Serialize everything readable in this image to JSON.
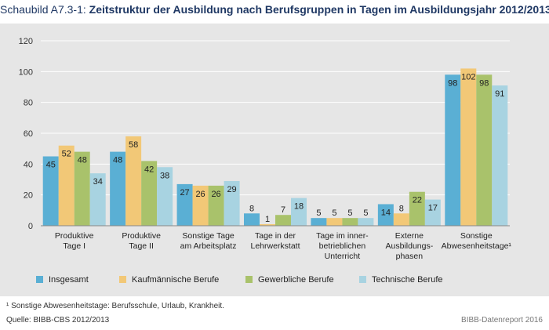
{
  "header": {
    "label": "Schaubild A7.3-1:",
    "title": "Zeitstruktur der Ausbildung nach Berufsgruppen in Tagen im Ausbildungsjahr 2012/2013"
  },
  "chart_data": {
    "type": "bar",
    "categories": [
      [
        "Produktive",
        "Tage I"
      ],
      [
        "Produktive",
        "Tage II"
      ],
      [
        "Sonstige Tage",
        "am Arbeitsplatz"
      ],
      [
        "Tage in der",
        "Lehrwerkstatt"
      ],
      [
        "Tage im inner-",
        "betrieblichen",
        "Unterricht"
      ],
      [
        "Externe",
        "Ausbildungs-",
        "phasen"
      ],
      [
        "Sonstige",
        "Abwesenheitstage¹"
      ]
    ],
    "series": [
      {
        "name": "Insgesamt",
        "color": "#5aafd4",
        "values": [
          45,
          48,
          27,
          8,
          5,
          14,
          98
        ]
      },
      {
        "name": "Kaufmännische Berufe",
        "color": "#f2c877",
        "values": [
          52,
          58,
          26,
          1,
          5,
          8,
          102
        ]
      },
      {
        "name": "Gewerbliche Berufe",
        "color": "#a9c26b",
        "values": [
          48,
          42,
          26,
          7,
          5,
          22,
          98
        ]
      },
      {
        "name": "Technische Berufe",
        "color": "#a8d3e1",
        "values": [
          34,
          38,
          29,
          18,
          5,
          17,
          91
        ]
      }
    ],
    "ylim": [
      0,
      120
    ],
    "yticks": [
      0,
      20,
      40,
      60,
      80,
      100,
      120
    ],
    "grid": true,
    "legend": "bottom"
  },
  "footer": {
    "footnote": "¹ Sonstige Abwesenheitstage: Berufsschule, Urlaub, Krankheit.",
    "source": "Quelle: BIBB-CBS 2012/2013",
    "credit": "BIBB-Datenreport 2016"
  }
}
